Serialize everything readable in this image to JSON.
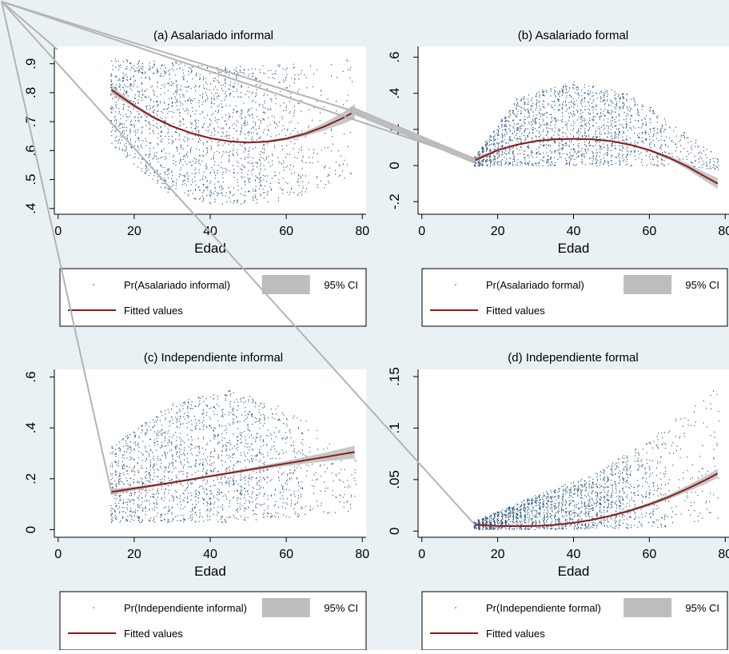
{
  "colors": {
    "background": "#e9f1f4",
    "plot_background": "#ffffff",
    "points": "#1f4e79",
    "fit_line": "#8b1a1a",
    "ci_band": "#bdbdbd",
    "overlay_lines": "#b4b4b4"
  },
  "legend_ci_label": "95% CI",
  "legend_fit_label": "Fitted values",
  "chart_data": [
    {
      "type": "scatter",
      "title": "(a) Asalariado informal",
      "xlabel": "Edad",
      "ylabel": "",
      "xlim": [
        -1,
        81
      ],
      "ylim": [
        0.38,
        0.96
      ],
      "xticks": [
        0,
        20,
        40,
        60,
        80
      ],
      "xtick_labels": [
        "0",
        "20",
        "40",
        "60",
        "80"
      ],
      "yticks": [
        0.4,
        0.5,
        0.6,
        0.7,
        0.8,
        0.9
      ],
      "ytick_labels": [
        ".4",
        ".5",
        ".6",
        ".7",
        ".8",
        ".9"
      ],
      "legend_scatter_label": "Pr(Asalariado informal)",
      "fit_x": [
        14,
        20,
        25,
        30,
        35,
        40,
        45,
        50,
        55,
        60,
        65,
        70,
        75,
        78
      ],
      "fit_y": [
        0.81,
        0.755,
        0.715,
        0.684,
        0.66,
        0.643,
        0.632,
        0.628,
        0.631,
        0.641,
        0.658,
        0.683,
        0.713,
        0.735
      ],
      "ci_half": [
        0.014,
        0.007,
        0.004,
        0.003,
        0.003,
        0.003,
        0.003,
        0.003,
        0.004,
        0.005,
        0.008,
        0.013,
        0.02,
        0.025
      ],
      "point_x_range": [
        14,
        77
      ],
      "point_spread": {
        "x": [
          14,
          30,
          45,
          60,
          70,
          77
        ],
        "lo": [
          0.62,
          0.44,
          0.41,
          0.43,
          0.47,
          0.52
        ],
        "hi": [
          0.92,
          0.91,
          0.89,
          0.9,
          0.91,
          0.92
        ]
      }
    },
    {
      "type": "scatter",
      "title": "(b) Asalariado formal",
      "xlabel": "Edad",
      "ylabel": "",
      "xlim": [
        -1,
        81
      ],
      "ylim": [
        -0.27,
        0.66
      ],
      "xticks": [
        0,
        20,
        40,
        60,
        80
      ],
      "xtick_labels": [
        "0",
        "20",
        "40",
        "60",
        "80"
      ],
      "yticks": [
        -0.2,
        0,
        0.2,
        0.4,
        0.6
      ],
      "ytick_labels": [
        "-.2",
        "0",
        ".2",
        ".4",
        ".6"
      ],
      "legend_scatter_label": "Pr(Asalariado formal)",
      "fit_x": [
        14,
        20,
        25,
        30,
        35,
        40,
        45,
        50,
        55,
        60,
        65,
        70,
        75,
        78
      ],
      "fit_y": [
        0.03,
        0.085,
        0.115,
        0.135,
        0.145,
        0.148,
        0.145,
        0.135,
        0.115,
        0.085,
        0.045,
        -0.005,
        -0.065,
        -0.1
      ],
      "ci_half": [
        0.012,
        0.007,
        0.005,
        0.004,
        0.004,
        0.004,
        0.004,
        0.004,
        0.005,
        0.007,
        0.01,
        0.016,
        0.024,
        0.03
      ],
      "point_x_range": [
        14,
        78
      ],
      "point_spread": {
        "x": [
          14,
          25,
          40,
          55,
          65,
          78
        ],
        "lo": [
          0.0,
          0.0,
          0.0,
          0.0,
          0.0,
          -0.02
        ],
        "hi": [
          0.05,
          0.38,
          0.47,
          0.4,
          0.25,
          0.05
        ]
      }
    },
    {
      "type": "scatter",
      "title": "(c) Independiente informal",
      "xlabel": "Edad",
      "ylabel": "",
      "xlim": [
        -1,
        81
      ],
      "ylim": [
        -0.03,
        0.63
      ],
      "xticks": [
        0,
        20,
        40,
        60,
        80
      ],
      "xtick_labels": [
        "0",
        "20",
        "40",
        "60",
        "80"
      ],
      "yticks": [
        0,
        0.2,
        0.4,
        0.6
      ],
      "ytick_labels": [
        "0",
        ".2",
        ".4",
        ".6"
      ],
      "legend_scatter_label": "Pr(Independiente informal)",
      "fit_x": [
        14,
        20,
        30,
        40,
        50,
        60,
        70,
        78
      ],
      "fit_y": [
        0.148,
        0.162,
        0.185,
        0.21,
        0.235,
        0.26,
        0.285,
        0.305
      ],
      "ci_half": [
        0.012,
        0.007,
        0.004,
        0.004,
        0.006,
        0.01,
        0.017,
        0.025
      ],
      "point_x_range": [
        14,
        78
      ],
      "point_spread": {
        "x": [
          14,
          30,
          45,
          60,
          78
        ],
        "lo": [
          0.03,
          0.03,
          0.03,
          0.05,
          0.07
        ],
        "hi": [
          0.33,
          0.5,
          0.55,
          0.48,
          0.3
        ]
      }
    },
    {
      "type": "scatter",
      "title": "(d) Independiente formal",
      "xlabel": "Edad",
      "ylabel": "",
      "xlim": [
        -1,
        81
      ],
      "ylim": [
        -0.006,
        0.157
      ],
      "xticks": [
        0,
        20,
        40,
        60,
        80
      ],
      "xtick_labels": [
        "0",
        "20",
        "40",
        "60",
        "80"
      ],
      "yticks": [
        0,
        0.05,
        0.1,
        0.15
      ],
      "ytick_labels": [
        "0",
        ".05",
        ".1",
        ".15"
      ],
      "legend_scatter_label": "Pr(Independiente formal)",
      "fit_x": [
        14,
        20,
        25,
        30,
        35,
        40,
        45,
        50,
        55,
        60,
        65,
        70,
        75,
        78
      ],
      "fit_y": [
        0.006,
        0.005,
        0.0048,
        0.005,
        0.006,
        0.008,
        0.011,
        0.015,
        0.02,
        0.026,
        0.033,
        0.041,
        0.05,
        0.056
      ],
      "ci_half": [
        0.001,
        0.0007,
        0.0006,
        0.0006,
        0.0006,
        0.0007,
        0.0008,
        0.001,
        0.0013,
        0.0017,
        0.0022,
        0.003,
        0.0038,
        0.0045
      ],
      "point_x_range": [
        14,
        78
      ],
      "point_spread": {
        "x": [
          14,
          30,
          45,
          60,
          78
        ],
        "lo": [
          0.002,
          0.002,
          0.002,
          0.003,
          0.01
        ],
        "hi": [
          0.01,
          0.035,
          0.055,
          0.09,
          0.14
        ]
      }
    }
  ]
}
